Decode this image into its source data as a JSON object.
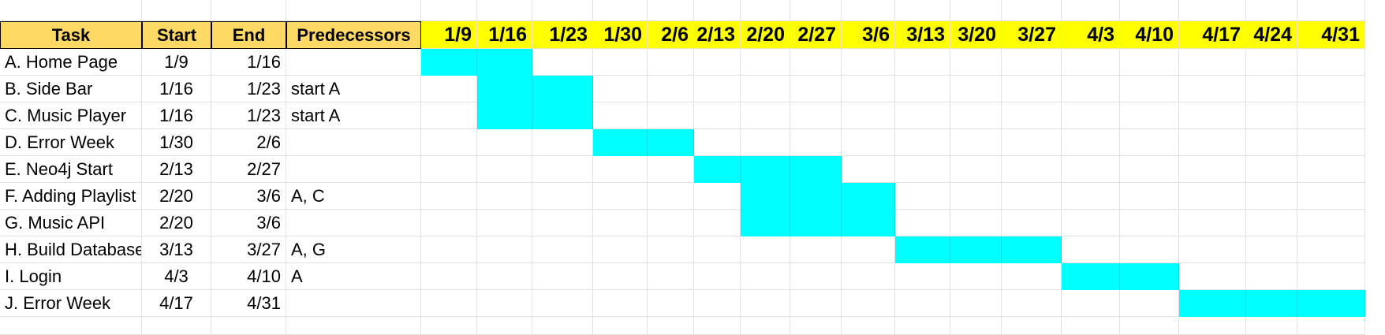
{
  "headers": {
    "task": "Task",
    "start": "Start",
    "end": "End",
    "predecessors": "Predecessors"
  },
  "timeline": [
    "1/9",
    "1/16",
    "1/23",
    "1/30",
    "2/6",
    "2/13",
    "2/20",
    "2/27",
    "3/6",
    "3/13",
    "3/20",
    "3/27",
    "4/3",
    "4/10",
    "4/17",
    "4/24",
    "4/31"
  ],
  "tasks": [
    {
      "task": "A. Home Page",
      "start": "1/9",
      "end": "1/16",
      "predecessors": ""
    },
    {
      "task": "B. Side Bar",
      "start": "1/16",
      "end": "1/23",
      "predecessors": "start A"
    },
    {
      "task": "C. Music Player",
      "start": "1/16",
      "end": "1/23",
      "predecessors": "start A"
    },
    {
      "task": "D. Error Week",
      "start": "1/30",
      "end": "2/6",
      "predecessors": ""
    },
    {
      "task": "E. Neo4j Start",
      "start": "2/13",
      "end": "2/27",
      "predecessors": ""
    },
    {
      "task": "F. Adding Playlist",
      "start": "2/20",
      "end": "3/6",
      "predecessors": "A, C"
    },
    {
      "task": "G. Music API",
      "start": "2/20",
      "end": "3/6",
      "predecessors": ""
    },
    {
      "task": "H. Build Database",
      "start": "3/13",
      "end": "3/27",
      "predecessors": "A, G"
    },
    {
      "task": "I. Login",
      "start": "4/3",
      "end": "4/10",
      "predecessors": "A"
    },
    {
      "task": "J. Error Week",
      "start": "4/17",
      "end": "4/31",
      "predecessors": ""
    }
  ],
  "gantt_spans": [
    {
      "from": "1/9",
      "to": "1/16"
    },
    {
      "from": "1/16",
      "to": "1/23"
    },
    {
      "from": "1/16",
      "to": "1/23"
    },
    {
      "from": "1/30",
      "to": "2/6"
    },
    {
      "from": "2/13",
      "to": "2/27"
    },
    {
      "from": "2/20",
      "to": "3/6"
    },
    {
      "from": "2/20",
      "to": "3/6"
    },
    {
      "from": "3/13",
      "to": "3/27"
    },
    {
      "from": "4/3",
      "to": "4/10"
    },
    {
      "from": "4/17",
      "to": "4/31"
    }
  ],
  "colors": {
    "task_header_bg": "#ffd966",
    "timeline_header_bg": "#ffff00",
    "bar_fill": "#00ffff",
    "gridline": "#e1e1e1"
  }
}
